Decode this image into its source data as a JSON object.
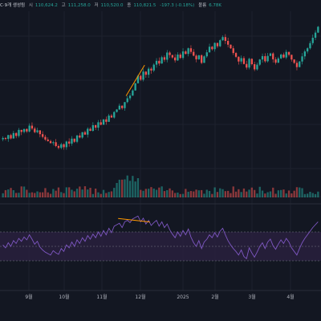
{
  "legend": {
    "title": "C·9개 생성됨",
    "open_label": "시",
    "open_value": "110,624.2",
    "high_label": "고",
    "high_value": "111,258.0",
    "low_label": "저",
    "low_value": "110,520.0",
    "close_label": "종",
    "close_value": "110,821.5",
    "change": "-197.3 (-0.18%)",
    "volume_label": "볼륨",
    "volume_value": "6.78K"
  },
  "colors": {
    "background": "#131722",
    "up": "#26a69a",
    "down": "#ef5350",
    "rsi_line": "#7e57c2",
    "rsi_band": "#2a2140",
    "divergence": "#ff9800",
    "grid": "#1e222d"
  },
  "chart_data": [
    {
      "type": "candlestick",
      "note_series": "price candles with volume bars, daily",
      "x_ticks": [
        "9월",
        "10월",
        "11월",
        "12월",
        "2025",
        "2월",
        "3월",
        "4월"
      ],
      "y_range": [
        44000,
        112000
      ],
      "candles_close": [
        61200,
        60800,
        62500,
        61000,
        63400,
        62100,
        64800,
        63900,
        65200,
        64100,
        66700,
        65400,
        63800,
        64600,
        62900,
        61700,
        60500,
        59800,
        58900,
        59300,
        57600,
        56800,
        58400,
        57100,
        59600,
        58700,
        60900,
        59500,
        62300,
        61400,
        63800,
        62700,
        65300,
        64400,
        66900,
        65800,
        68200,
        67100,
        69500,
        68400,
        71200,
        70300,
        72800,
        73900,
        75600,
        74500,
        77200,
        78900,
        80100,
        82400,
        85600,
        88900,
        87200,
        90800,
        89400,
        92100,
        91300,
        93900,
        95600,
        94400,
        97200,
        96100,
        99300,
        98200,
        97100,
        95800,
        98400,
        96900,
        99800,
        98700,
        101200,
        99600,
        97900,
        96300,
        98100,
        94700,
        97600,
        99400,
        101900,
        100800,
        103600,
        102100,
        104800,
        106200,
        104500,
        102800,
        101200,
        99100,
        97400,
        95300,
        96800,
        94200,
        92600,
        96500,
        94100,
        91800,
        93900,
        96200,
        97700,
        95400,
        97800,
        98900,
        96300,
        94800,
        96700,
        98400,
        97100,
        99600,
        98300,
        96200,
        94700,
        92800,
        95300,
        97600,
        99800,
        101200,
        103500,
        105900,
        108200,
        110800
      ]
    },
    {
      "type": "line",
      "series": [
        {
          "name": "RSI",
          "values": [
            52,
            48,
            55,
            50,
            58,
            54,
            61,
            57,
            63,
            59,
            66,
            60,
            53,
            57,
            49,
            45,
            42,
            40,
            38,
            44,
            41,
            39,
            47,
            43,
            52,
            48,
            56,
            50,
            59,
            54,
            62,
            57,
            65,
            60,
            67,
            62,
            70,
            64,
            72,
            66,
            75,
            69,
            78,
            80,
            82,
            76,
            84,
            86,
            83,
            88,
            90,
            92,
            84,
            89,
            81,
            86,
            79,
            83,
            86,
            78,
            84,
            76,
            81,
            73,
            67,
            62,
            70,
            64,
            72,
            66,
            74,
            63,
            55,
            50,
            58,
            47,
            56,
            60,
            66,
            62,
            69,
            63,
            71,
            75,
            66,
            58,
            52,
            47,
            43,
            38,
            45,
            36,
            33,
            48,
            41,
            35,
            42,
            50,
            55,
            47,
            56,
            60,
            51,
            46,
            53,
            59,
            54,
            61,
            56,
            48,
            43,
            38,
            47,
            55,
            61,
            66,
            71,
            76,
            80,
            84
          ]
        }
      ],
      "ylim": [
        0,
        100
      ],
      "band": [
        30,
        70
      ]
    }
  ]
}
